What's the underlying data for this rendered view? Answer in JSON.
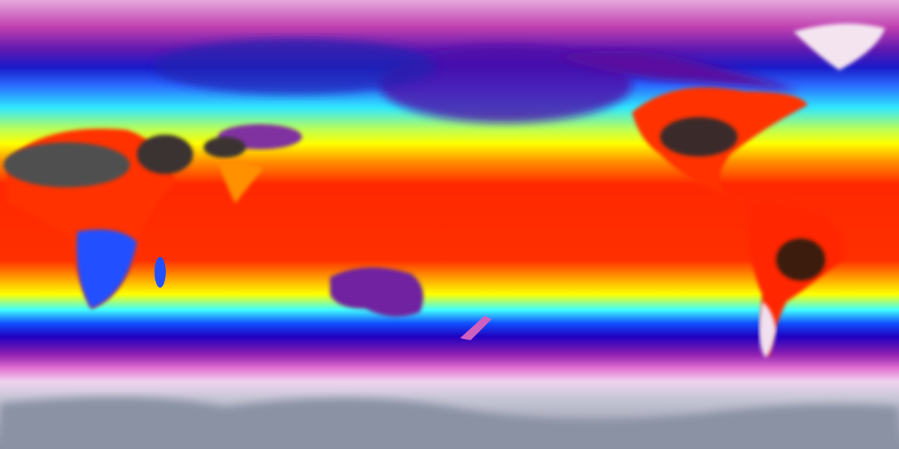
{
  "map": {
    "projection": "equirectangular",
    "colors": {
      "polar_pink": "#e0a0d8",
      "magenta": "#c030b0",
      "deep_blue": "#1818c0",
      "blue": "#2060ff",
      "cyan": "#30e8ff",
      "yellow": "#ffff00",
      "orange": "#ff8a00",
      "red": "#ff2400",
      "dark_hot": "#3a2a2a",
      "hottest_gray": "#6a6a6a",
      "ice_white": "#f0e0f0",
      "antarctic_gray": "#8890a0"
    }
  }
}
